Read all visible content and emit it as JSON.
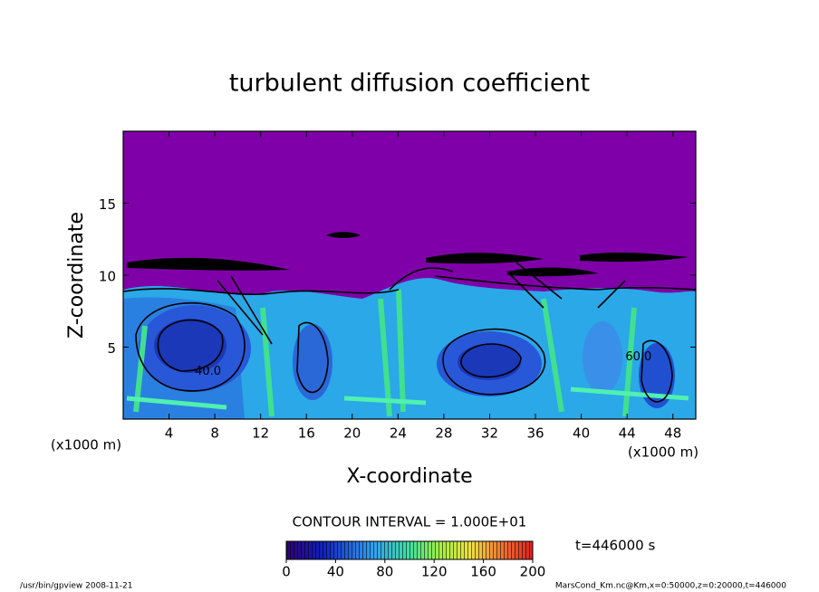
{
  "chart_data": {
    "type": "contour",
    "title": "turbulent diffusion coefficient",
    "x_label": "X-coordinate",
    "y_label": "Z-coordinate",
    "x_unit_labels": [
      "(x1000 m)",
      "(x1000 m)"
    ],
    "xlim": [
      0,
      50
    ],
    "xticks": [
      4,
      8,
      12,
      16,
      20,
      24,
      28,
      32,
      36,
      40,
      44,
      48
    ],
    "ylim": [
      0,
      20
    ],
    "yticks": [
      5,
      10,
      15
    ],
    "contour_interval": "CONTOUR INTERVAL = 1.000E+01",
    "colorbar": {
      "lim": [
        0,
        200
      ],
      "ticks": [
        0,
        40,
        80,
        120,
        160,
        200
      ]
    },
    "time_label": "t=446000 s",
    "contour_labels": [
      {
        "text": "40.0",
        "x": 7.4,
        "y": 3.3
      },
      {
        "text": "60.0",
        "x": 45,
        "y": 4.3
      }
    ]
  },
  "footer": {
    "left": "/usr/bin/gpview  2008-11-21",
    "right": "MarsCond_Km.nc@Km,x=0:50000,z=0:20000,t=446000"
  }
}
